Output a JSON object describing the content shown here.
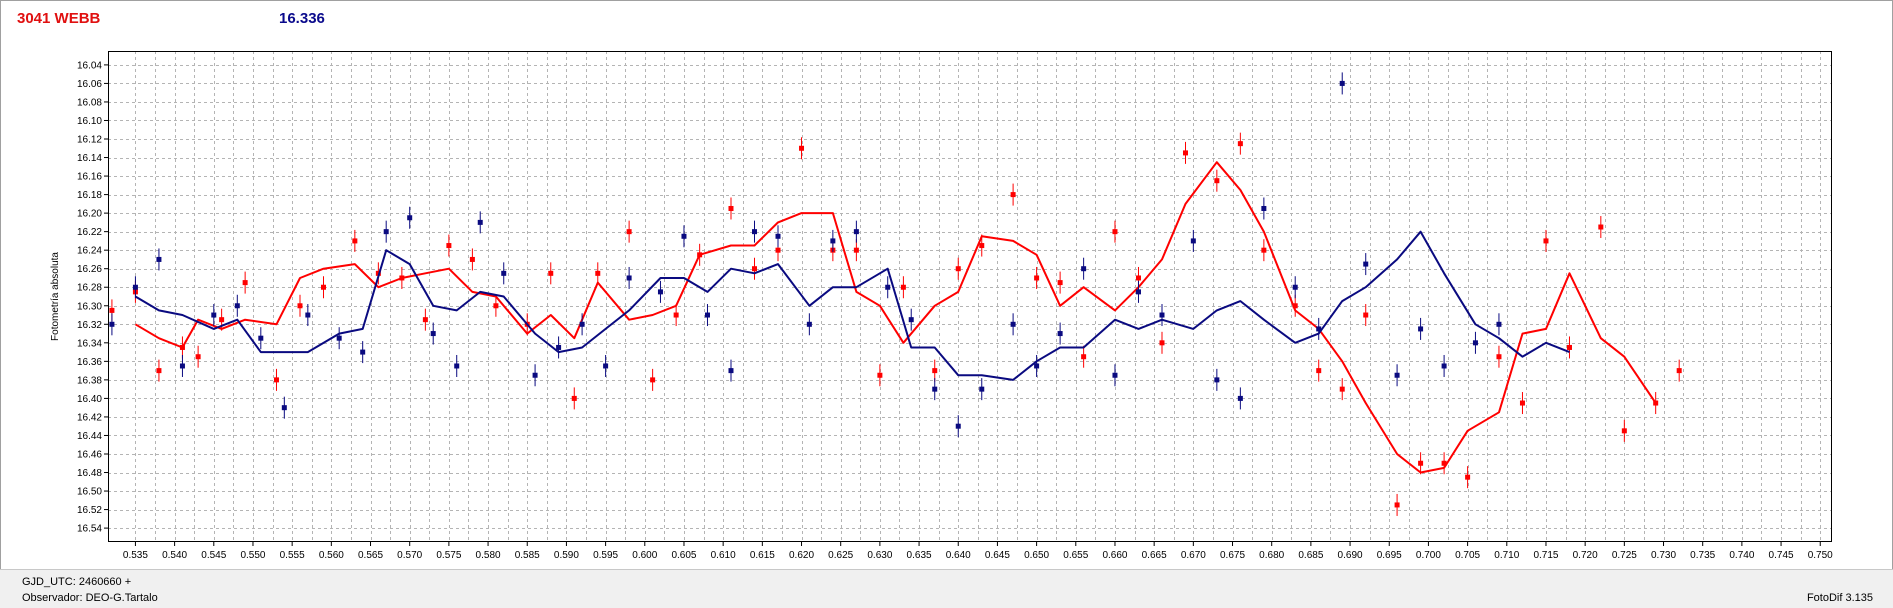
{
  "header": {
    "title": "3041 WEBB",
    "value": "16.336"
  },
  "status": {
    "gjd": "GJD_UTC: 2460660 +",
    "observer": "Observador: DEO-G.Tartalo",
    "version": "FotoDif 3.135"
  },
  "colors": {
    "red": "#ff0000",
    "blue": "#0a0a80",
    "title_red": "#e01010",
    "title_blue": "#0a0a8c"
  },
  "chart_data": {
    "type": "scatter",
    "title": "",
    "xlabel": "",
    "ylabel": "Fotometría absoluta",
    "xlim": [
      0.5315,
      0.7515
    ],
    "ylim": [
      16.555,
      16.025
    ],
    "y_inverted": true,
    "grid": true,
    "x_ticks": [
      "0.535",
      "0.540",
      "0.545",
      "0.550",
      "0.555",
      "0.560",
      "0.565",
      "0.570",
      "0.575",
      "0.580",
      "0.585",
      "0.590",
      "0.595",
      "0.600",
      "0.605",
      "0.610",
      "0.615",
      "0.620",
      "0.625",
      "0.630",
      "0.635",
      "0.640",
      "0.645",
      "0.650",
      "0.655",
      "0.660",
      "0.665",
      "0.670",
      "0.675",
      "0.680",
      "0.685",
      "0.690",
      "0.695",
      "0.700",
      "0.705",
      "0.710",
      "0.715",
      "0.720",
      "0.725",
      "0.730",
      "0.735",
      "0.740",
      "0.745",
      "0.750"
    ],
    "y_ticks": [
      "16.04",
      "16.06",
      "16.08",
      "16.10",
      "16.12",
      "16.14",
      "16.16",
      "16.18",
      "16.20",
      "16.22",
      "16.24",
      "16.26",
      "16.28",
      "16.30",
      "16.32",
      "16.34",
      "16.36",
      "16.38",
      "16.40",
      "16.42",
      "16.44",
      "16.46",
      "16.48",
      "16.50",
      "16.52",
      "16.54"
    ],
    "series": [
      {
        "color": "#ff0000",
        "points": [
          [
            0.532,
            16.305
          ],
          [
            0.535,
            16.285
          ],
          [
            0.538,
            16.37
          ],
          [
            0.541,
            16.345
          ],
          [
            0.543,
            16.355
          ],
          [
            0.546,
            16.315
          ],
          [
            0.549,
            16.275
          ],
          [
            0.553,
            16.38
          ],
          [
            0.556,
            16.3
          ],
          [
            0.559,
            16.28
          ],
          [
            0.563,
            16.23
          ],
          [
            0.566,
            16.265
          ],
          [
            0.569,
            16.27
          ],
          [
            0.572,
            16.315
          ],
          [
            0.575,
            16.235
          ],
          [
            0.578,
            16.25
          ],
          [
            0.581,
            16.3
          ],
          [
            0.585,
            16.32
          ],
          [
            0.588,
            16.265
          ],
          [
            0.591,
            16.4
          ],
          [
            0.594,
            16.265
          ],
          [
            0.598,
            16.22
          ],
          [
            0.601,
            16.38
          ],
          [
            0.604,
            16.31
          ],
          [
            0.607,
            16.245
          ],
          [
            0.611,
            16.195
          ],
          [
            0.614,
            16.26
          ],
          [
            0.617,
            16.24
          ],
          [
            0.62,
            16.13
          ],
          [
            0.624,
            16.24
          ],
          [
            0.627,
            16.24
          ],
          [
            0.63,
            16.375
          ],
          [
            0.633,
            16.28
          ],
          [
            0.637,
            16.37
          ],
          [
            0.64,
            16.26
          ],
          [
            0.643,
            16.235
          ],
          [
            0.647,
            16.18
          ],
          [
            0.65,
            16.27
          ],
          [
            0.653,
            16.275
          ],
          [
            0.656,
            16.355
          ],
          [
            0.66,
            16.22
          ],
          [
            0.663,
            16.27
          ],
          [
            0.666,
            16.34
          ],
          [
            0.669,
            16.135
          ],
          [
            0.673,
            16.165
          ],
          [
            0.676,
            16.125
          ],
          [
            0.679,
            16.24
          ],
          [
            0.683,
            16.3
          ],
          [
            0.686,
            16.37
          ],
          [
            0.689,
            16.39
          ],
          [
            0.692,
            16.31
          ],
          [
            0.696,
            16.515
          ],
          [
            0.699,
            16.47
          ],
          [
            0.702,
            16.47
          ],
          [
            0.705,
            16.485
          ],
          [
            0.709,
            16.355
          ],
          [
            0.712,
            16.405
          ],
          [
            0.715,
            16.23
          ],
          [
            0.718,
            16.345
          ],
          [
            0.722,
            16.215
          ],
          [
            0.725,
            16.435
          ],
          [
            0.729,
            16.405
          ],
          [
            0.732,
            16.37
          ]
        ],
        "line": [
          [
            0.535,
            16.32
          ],
          [
            0.538,
            16.335
          ],
          [
            0.541,
            16.345
          ],
          [
            0.543,
            16.315
          ],
          [
            0.546,
            16.325
          ],
          [
            0.549,
            16.315
          ],
          [
            0.553,
            16.32
          ],
          [
            0.556,
            16.27
          ],
          [
            0.559,
            16.26
          ],
          [
            0.563,
            16.255
          ],
          [
            0.566,
            16.28
          ],
          [
            0.569,
            16.27
          ],
          [
            0.572,
            16.265
          ],
          [
            0.575,
            16.26
          ],
          [
            0.578,
            16.285
          ],
          [
            0.581,
            16.29
          ],
          [
            0.585,
            16.33
          ],
          [
            0.588,
            16.31
          ],
          [
            0.591,
            16.335
          ],
          [
            0.594,
            16.275
          ],
          [
            0.598,
            16.315
          ],
          [
            0.601,
            16.31
          ],
          [
            0.604,
            16.3
          ],
          [
            0.607,
            16.245
          ],
          [
            0.611,
            16.235
          ],
          [
            0.614,
            16.235
          ],
          [
            0.617,
            16.21
          ],
          [
            0.62,
            16.2
          ],
          [
            0.624,
            16.2
          ],
          [
            0.627,
            16.285
          ],
          [
            0.63,
            16.3
          ],
          [
            0.633,
            16.34
          ],
          [
            0.637,
            16.3
          ],
          [
            0.64,
            16.285
          ],
          [
            0.643,
            16.225
          ],
          [
            0.647,
            16.23
          ],
          [
            0.65,
            16.245
          ],
          [
            0.653,
            16.3
          ],
          [
            0.656,
            16.28
          ],
          [
            0.66,
            16.305
          ],
          [
            0.663,
            16.28
          ],
          [
            0.666,
            16.25
          ],
          [
            0.669,
            16.19
          ],
          [
            0.673,
            16.145
          ],
          [
            0.676,
            16.175
          ],
          [
            0.679,
            16.22
          ],
          [
            0.683,
            16.305
          ],
          [
            0.686,
            16.325
          ],
          [
            0.689,
            16.36
          ],
          [
            0.692,
            16.405
          ],
          [
            0.696,
            16.46
          ],
          [
            0.699,
            16.48
          ],
          [
            0.702,
            16.475
          ],
          [
            0.705,
            16.435
          ],
          [
            0.709,
            16.415
          ],
          [
            0.712,
            16.33
          ],
          [
            0.715,
            16.325
          ],
          [
            0.718,
            16.265
          ],
          [
            0.722,
            16.335
          ],
          [
            0.725,
            16.355
          ],
          [
            0.729,
            16.405
          ]
        ]
      },
      {
        "color": "#0a0a80",
        "points": [
          [
            0.532,
            16.32
          ],
          [
            0.535,
            16.28
          ],
          [
            0.538,
            16.25
          ],
          [
            0.541,
            16.365
          ],
          [
            0.545,
            16.31
          ],
          [
            0.548,
            16.3
          ],
          [
            0.551,
            16.335
          ],
          [
            0.554,
            16.41
          ],
          [
            0.557,
            16.31
          ],
          [
            0.561,
            16.335
          ],
          [
            0.564,
            16.35
          ],
          [
            0.567,
            16.22
          ],
          [
            0.57,
            16.205
          ],
          [
            0.573,
            16.33
          ],
          [
            0.576,
            16.365
          ],
          [
            0.579,
            16.21
          ],
          [
            0.582,
            16.265
          ],
          [
            0.586,
            16.375
          ],
          [
            0.589,
            16.345
          ],
          [
            0.592,
            16.32
          ],
          [
            0.595,
            16.365
          ],
          [
            0.598,
            16.27
          ],
          [
            0.602,
            16.285
          ],
          [
            0.605,
            16.225
          ],
          [
            0.608,
            16.31
          ],
          [
            0.611,
            16.37
          ],
          [
            0.614,
            16.22
          ],
          [
            0.617,
            16.225
          ],
          [
            0.621,
            16.32
          ],
          [
            0.624,
            16.23
          ],
          [
            0.627,
            16.22
          ],
          [
            0.631,
            16.28
          ],
          [
            0.634,
            16.315
          ],
          [
            0.637,
            16.39
          ],
          [
            0.64,
            16.43
          ],
          [
            0.643,
            16.39
          ],
          [
            0.647,
            16.32
          ],
          [
            0.65,
            16.365
          ],
          [
            0.653,
            16.33
          ],
          [
            0.656,
            16.26
          ],
          [
            0.66,
            16.375
          ],
          [
            0.663,
            16.285
          ],
          [
            0.666,
            16.31
          ],
          [
            0.67,
            16.23
          ],
          [
            0.673,
            16.38
          ],
          [
            0.676,
            16.4
          ],
          [
            0.679,
            16.195
          ],
          [
            0.683,
            16.28
          ],
          [
            0.686,
            16.325
          ],
          [
            0.689,
            16.06
          ],
          [
            0.692,
            16.255
          ],
          [
            0.696,
            16.375
          ],
          [
            0.699,
            16.325
          ],
          [
            0.702,
            16.365
          ],
          [
            0.706,
            16.34
          ],
          [
            0.709,
            16.32
          ]
        ],
        "line": [
          [
            0.535,
            16.29
          ],
          [
            0.538,
            16.305
          ],
          [
            0.541,
            16.31
          ],
          [
            0.545,
            16.325
          ],
          [
            0.548,
            16.315
          ],
          [
            0.551,
            16.35
          ],
          [
            0.554,
            16.35
          ],
          [
            0.557,
            16.35
          ],
          [
            0.561,
            16.33
          ],
          [
            0.564,
            16.325
          ],
          [
            0.567,
            16.24
          ],
          [
            0.57,
            16.255
          ],
          [
            0.573,
            16.3
          ],
          [
            0.576,
            16.305
          ],
          [
            0.579,
            16.285
          ],
          [
            0.582,
            16.29
          ],
          [
            0.586,
            16.33
          ],
          [
            0.589,
            16.35
          ],
          [
            0.592,
            16.345
          ],
          [
            0.595,
            16.325
          ],
          [
            0.598,
            16.305
          ],
          [
            0.602,
            16.27
          ],
          [
            0.605,
            16.27
          ],
          [
            0.608,
            16.285
          ],
          [
            0.611,
            16.26
          ],
          [
            0.614,
            16.265
          ],
          [
            0.617,
            16.255
          ],
          [
            0.621,
            16.3
          ],
          [
            0.624,
            16.28
          ],
          [
            0.627,
            16.28
          ],
          [
            0.631,
            16.26
          ],
          [
            0.634,
            16.345
          ],
          [
            0.637,
            16.345
          ],
          [
            0.64,
            16.375
          ],
          [
            0.643,
            16.375
          ],
          [
            0.647,
            16.38
          ],
          [
            0.65,
            16.36
          ],
          [
            0.653,
            16.345
          ],
          [
            0.656,
            16.345
          ],
          [
            0.66,
            16.315
          ],
          [
            0.663,
            16.325
          ],
          [
            0.666,
            16.315
          ],
          [
            0.67,
            16.325
          ],
          [
            0.673,
            16.305
          ],
          [
            0.676,
            16.295
          ],
          [
            0.679,
            16.315
          ],
          [
            0.683,
            16.34
          ],
          [
            0.686,
            16.33
          ],
          [
            0.689,
            16.295
          ],
          [
            0.692,
            16.28
          ],
          [
            0.696,
            16.25
          ],
          [
            0.699,
            16.22
          ],
          [
            0.702,
            16.265
          ],
          [
            0.706,
            16.32
          ],
          [
            0.709,
            16.335
          ],
          [
            0.712,
            16.355
          ],
          [
            0.715,
            16.34
          ],
          [
            0.718,
            16.35
          ]
        ]
      }
    ]
  }
}
